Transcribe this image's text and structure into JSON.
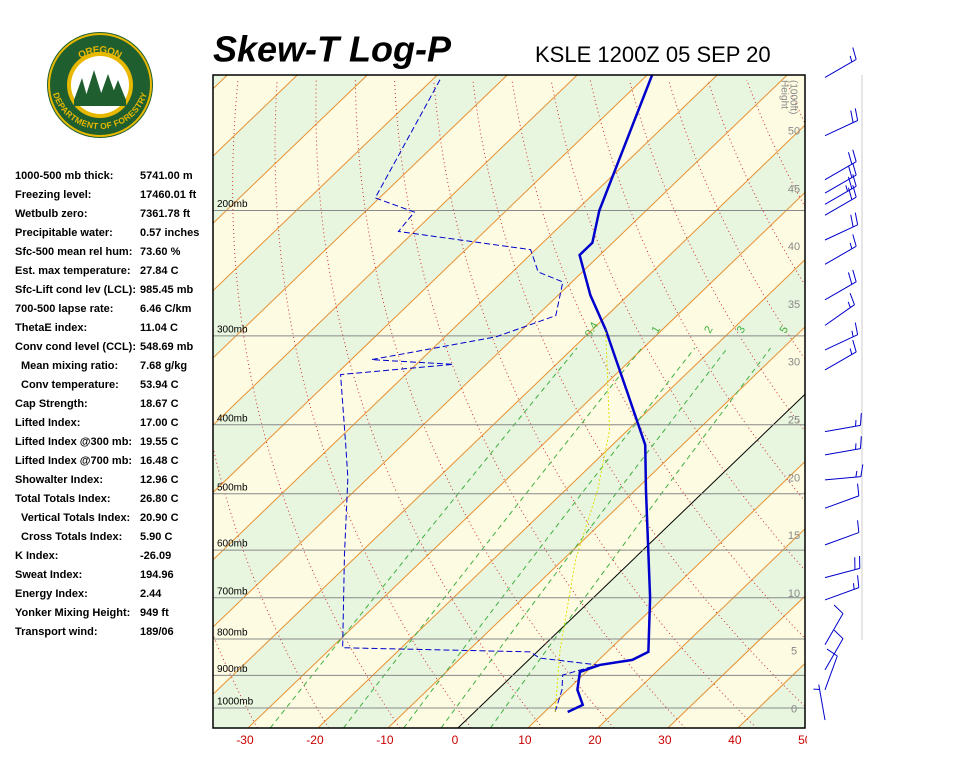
{
  "sidebar": {
    "logo": {
      "top": "OREGON",
      "bottom": "DEPARTMENT OF FORESTRY"
    },
    "indices": [
      [
        "1000-500 mb thick:",
        "5741.00 m"
      ],
      [
        "Freezing level:",
        "17460.01 ft"
      ],
      [
        "Wetbulb zero:",
        "7361.78 ft"
      ],
      [
        "Precipitable water:",
        "0.57 inches"
      ],
      [
        "Sfc-500 mean rel hum:",
        "73.60 %"
      ],
      [
        "Est. max temperature:",
        "27.84 C"
      ],
      [
        "Sfc-Lift cond lev (LCL):",
        "985.45 mb"
      ],
      [
        "700-500 lapse rate:",
        "6.46 C/km"
      ],
      [
        "ThetaE index:",
        "11.04 C"
      ],
      [
        "Conv cond level (CCL):",
        "548.69 mb"
      ],
      [
        "Mean mixing ratio:",
        "7.68 g/kg"
      ],
      [
        "Conv temperature:",
        "53.94 C"
      ],
      [
        "Cap Strength:",
        "18.67 C"
      ],
      [
        "Lifted Index:",
        "17.00 C"
      ],
      [
        "Lifted Index @300 mb:",
        "19.55 C"
      ],
      [
        "Lifted Index @700 mb:",
        "16.48 C"
      ],
      [
        "Showalter Index:",
        "12.96 C"
      ],
      [
        "Total Totals Index:",
        "26.80 C"
      ],
      [
        "Vertical Totals Index:",
        "20.90 C"
      ],
      [
        "Cross Totals Index:",
        "5.90 C"
      ],
      [
        "K Index:",
        "-26.09"
      ],
      [
        "Sweat Index:",
        "194.96"
      ],
      [
        "Energy Index:",
        "2.44"
      ],
      [
        "Yonker Mixing Height:",
        "949 ft"
      ],
      [
        "Transport wind:",
        "189/06"
      ]
    ]
  },
  "chart_data": {
    "type": "skewt",
    "title": "Skew-T Log-P",
    "subtitle": "KSLE 1200Z 05 SEP 20",
    "xlim": [
      -35,
      49.6
    ],
    "xticks": [
      -30,
      -20,
      -10,
      0,
      10,
      20,
      30,
      40,
      50
    ],
    "ylim": [
      1067,
      129
    ],
    "log_y": true,
    "yticks": [
      {
        "value": 1000,
        "label": "1000mb"
      },
      {
        "value": 900,
        "label": "900mb"
      },
      {
        "value": 800,
        "label": "800mb"
      },
      {
        "value": 700,
        "label": "700mb"
      },
      {
        "value": 600,
        "label": "600mb"
      },
      {
        "value": 500,
        "label": "500mb"
      },
      {
        "value": 400,
        "label": "400mb"
      },
      {
        "value": 300,
        "label": "300mb"
      },
      {
        "value": 200,
        "label": "200mb"
      }
    ],
    "y2label": [
      "Height",
      "(1000ft)"
    ],
    "y2lim": [
      -1.6,
      54.9
    ],
    "y2ticks": [
      0,
      5,
      10,
      15,
      20,
      25,
      30,
      35,
      40,
      45,
      50
    ],
    "mixing_ratio_ticks": [
      0.4,
      1,
      2,
      3,
      5
    ],
    "series": [
      {
        "color": "#0000cc",
        "style": "solid",
        "pressure": [
          1013,
          990,
          943,
          890,
          870,
          856,
          834,
          700,
          494,
          427,
          363,
          294,
          263,
          231,
          222,
          200,
          129
        ],
        "values": [
          13.3,
          14.4,
          11.4,
          9.1,
          10.9,
          14.8,
          15.9,
          8.1,
          -8.5,
          -15.3,
          -25.2,
          -38.1,
          -45.4,
          -52.9,
          -52.9,
          -56.7,
          -69.3
        ]
      },
      {
        "color": "#0000cc",
        "style": "dashed",
        "pressure": [
          1013,
          943,
          899,
          870,
          851,
          834,
          823,
          610,
          475,
          427,
          340,
          329,
          324,
          301,
          281,
          252,
          244,
          227,
          214,
          201,
          192,
          131
        ],
        "values": [
          11.5,
          9.2,
          7.1,
          10.6,
          1.3,
          -1.0,
          -28.4,
          -41.9,
          -52.9,
          -58.1,
          -69.3,
          -54.7,
          -67.1,
          -52.7,
          -47.3,
          -51.3,
          -56.3,
          -60.7,
          -82.3,
          -82.9,
          -90.6,
          -98.9
        ]
      },
      {
        "color": "#e0e000",
        "style": "dotted",
        "pressure": [
          1013,
          829,
          619,
          494,
          407,
          294
        ],
        "values": [
          11.5,
          3.0,
          -8.2,
          -15.4,
          -22.6,
          -38.1
        ]
      }
    ],
    "winds": {
      "pressure": [
        130,
        157,
        181,
        189,
        196,
        203,
        220,
        238,
        267,
        290,
        314,
        335,
        409,
        441,
        478,
        524,
        590,
        656,
        705,
        815,
        884,
        943,
        1040
      ],
      "direction": [
        60,
        65,
        60,
        60,
        60,
        60,
        65,
        60,
        60,
        55,
        65,
        60,
        80,
        80,
        85,
        70,
        70,
        75,
        70,
        30,
        30,
        20,
        350
      ],
      "speed": [
        15,
        20,
        20,
        20,
        25,
        20,
        20,
        15,
        20,
        15,
        15,
        15,
        15,
        15,
        15,
        10,
        10,
        20,
        15,
        10,
        10,
        10,
        5
      ]
    }
  }
}
